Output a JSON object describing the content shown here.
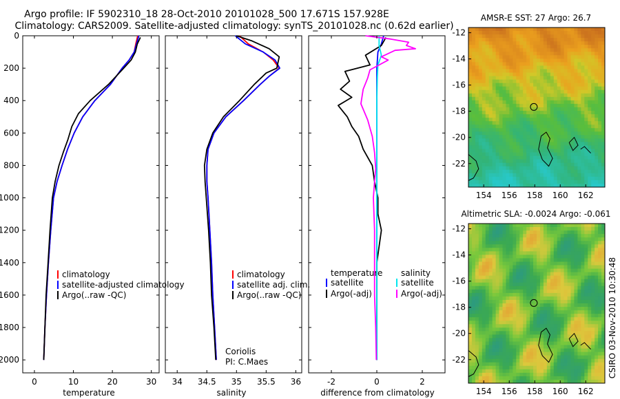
{
  "header": {
    "line1": "Argo profile: IF 5902310_18 28-Oct-2010 20101028_500 17.671S 157.928E",
    "line2": "Climatology: CARS2009. Satellite-adjusted climatology: synTS_20101028.nc (0.62d earlier)"
  },
  "colors": {
    "climatology": "#ff0000",
    "satellite": "#0000ff",
    "argo": "#000000",
    "argo_adj": "#ff00ff",
    "sat_salinity": "#00e5ee"
  },
  "chart_data": [
    {
      "type": "line",
      "xlabel": "temperature",
      "xlim": [
        -3,
        32
      ],
      "ylim": [
        0,
        2080
      ],
      "xticks": [
        0,
        10,
        20,
        30
      ],
      "yticks": [
        0,
        200,
        400,
        600,
        800,
        1000,
        1200,
        1400,
        1600,
        1800,
        2000
      ],
      "y_inverted": true,
      "legend": [
        "climatology",
        "satellite-adjusted climatology",
        "Argo(..raw -QC)"
      ],
      "series": [
        {
          "name": "climatology",
          "color": "#ff0000",
          "points": [
            [
              26.5,
              0
            ],
            [
              26,
              50
            ],
            [
              25.6,
              100
            ],
            [
              24.3,
              150
            ],
            [
              22.5,
              200
            ],
            [
              19.5,
              300
            ],
            [
              15.5,
              400
            ],
            [
              12.4,
              500
            ],
            [
              10.2,
              600
            ],
            [
              8.5,
              700
            ],
            [
              7.1,
              800
            ],
            [
              5.8,
              900
            ],
            [
              4.9,
              1000
            ],
            [
              4.2,
              1200
            ],
            [
              3.6,
              1400
            ],
            [
              3.1,
              1600
            ],
            [
              2.7,
              1800
            ],
            [
              2.4,
              2000
            ]
          ]
        },
        {
          "name": "satellite-adjusted climatology",
          "color": "#0000ff",
          "points": [
            [
              26.8,
              0
            ],
            [
              26.2,
              50
            ],
            [
              25.6,
              100
            ],
            [
              24.3,
              150
            ],
            [
              22.5,
              200
            ],
            [
              19.5,
              300
            ],
            [
              15.5,
              400
            ],
            [
              12.4,
              500
            ],
            [
              10.2,
              600
            ],
            [
              8.5,
              700
            ],
            [
              7.1,
              800
            ],
            [
              5.8,
              900
            ],
            [
              4.9,
              1000
            ],
            [
              4.2,
              1200
            ],
            [
              3.6,
              1400
            ],
            [
              3.1,
              1600
            ],
            [
              2.7,
              1800
            ],
            [
              2.4,
              2000
            ]
          ]
        },
        {
          "name": "Argo(..raw -QC)",
          "color": "#000000",
          "points": [
            [
              27.2,
              10
            ],
            [
              26.4,
              50
            ],
            [
              25.9,
              100
            ],
            [
              24.8,
              150
            ],
            [
              22.9,
              200
            ],
            [
              19,
              300
            ],
            [
              14.3,
              400
            ],
            [
              11.3,
              480
            ],
            [
              9.6,
              560
            ],
            [
              8.6,
              640
            ],
            [
              7.4,
              720
            ],
            [
              6.3,
              800
            ],
            [
              5.3,
              900
            ],
            [
              4.6,
              1000
            ],
            [
              4,
              1200
            ],
            [
              3.5,
              1400
            ],
            [
              3,
              1600
            ],
            [
              2.7,
              1800
            ],
            [
              2.4,
              2000
            ]
          ]
        }
      ]
    },
    {
      "type": "line",
      "xlabel": "salinity",
      "xlim": [
        33.8,
        36.1
      ],
      "ylim": [
        0,
        2080
      ],
      "xticks": [
        34,
        34.5,
        35,
        35.5,
        36
      ],
      "yticks": [
        0,
        200,
        400,
        600,
        800,
        1000,
        1200,
        1400,
        1600,
        1800,
        2000
      ],
      "y_inverted": true,
      "legend": [
        "climatology",
        "satellite adj. clim.",
        "Argo(..raw -QC)"
      ],
      "annotation": [
        "Coriolis",
        "PI: C.Maes"
      ],
      "series": [
        {
          "name": "climatology",
          "color": "#ff0000",
          "points": [
            [
              35.05,
              0
            ],
            [
              35.2,
              50
            ],
            [
              35.45,
              100
            ],
            [
              35.62,
              150
            ],
            [
              35.72,
              200
            ],
            [
              35.55,
              250
            ],
            [
              35.4,
              300
            ],
            [
              35.12,
              400
            ],
            [
              34.82,
              500
            ],
            [
              34.62,
              600
            ],
            [
              34.52,
              700
            ],
            [
              34.5,
              800
            ],
            [
              34.5,
              900
            ],
            [
              34.52,
              1000
            ],
            [
              34.55,
              1200
            ],
            [
              34.58,
              1400
            ],
            [
              34.6,
              1600
            ],
            [
              34.63,
              1800
            ],
            [
              34.66,
              2000
            ]
          ]
        },
        {
          "name": "satellite adj. clim.",
          "color": "#0000ff",
          "points": [
            [
              34.98,
              0
            ],
            [
              35.15,
              50
            ],
            [
              35.45,
              100
            ],
            [
              35.65,
              150
            ],
            [
              35.73,
              200
            ],
            [
              35.55,
              250
            ],
            [
              35.4,
              300
            ],
            [
              35.12,
              400
            ],
            [
              34.82,
              500
            ],
            [
              34.62,
              600
            ],
            [
              34.52,
              700
            ],
            [
              34.5,
              800
            ],
            [
              34.5,
              900
            ],
            [
              34.52,
              1000
            ],
            [
              34.55,
              1200
            ],
            [
              34.58,
              1400
            ],
            [
              34.6,
              1600
            ],
            [
              34.63,
              1800
            ],
            [
              34.66,
              2000
            ]
          ]
        },
        {
          "name": "Argo(..raw -QC)",
          "color": "#000000",
          "points": [
            [
              35.0,
              0
            ],
            [
              35.25,
              30
            ],
            [
              35.55,
              80
            ],
            [
              35.72,
              130
            ],
            [
              35.68,
              200
            ],
            [
              35.5,
              230
            ],
            [
              35.3,
              300
            ],
            [
              35.05,
              400
            ],
            [
              34.78,
              500
            ],
            [
              34.6,
              600
            ],
            [
              34.5,
              700
            ],
            [
              34.46,
              800
            ],
            [
              34.47,
              900
            ],
            [
              34.49,
              1000
            ],
            [
              34.53,
              1200
            ],
            [
              34.56,
              1400
            ],
            [
              34.58,
              1600
            ],
            [
              34.62,
              1800
            ],
            [
              34.65,
              2000
            ]
          ]
        }
      ]
    },
    {
      "type": "line",
      "xlabel": "difference from climatology",
      "xlim": [
        -3,
        3
      ],
      "ylim": [
        0,
        2080
      ],
      "xticks": [
        -2,
        0,
        2
      ],
      "yticks": [
        0,
        200,
        400,
        600,
        800,
        1000,
        1200,
        1400,
        1600,
        1800,
        2000
      ],
      "y_inverted": true,
      "legend_left_title": "temperature",
      "legend_left": [
        "satellite",
        "Argo(-adj)"
      ],
      "legend_right_title": "salinity",
      "legend_right": [
        "satellite",
        "Argo(-adj)"
      ],
      "series": [
        {
          "name": "temperature satellite",
          "color": "#0000ff",
          "points": [
            [
              0.3,
              0
            ],
            [
              0.2,
              50
            ],
            [
              0.05,
              100
            ],
            [
              0,
              200
            ],
            [
              0,
              400
            ],
            [
              0,
              800
            ],
            [
              0,
              1200
            ],
            [
              0,
              1600
            ],
            [
              0,
              2000
            ]
          ]
        },
        {
          "name": "temperature Argo(-adj)",
          "color": "#000000",
          "points": [
            [
              0.4,
              10
            ],
            [
              0.2,
              60
            ],
            [
              -0.5,
              120
            ],
            [
              -0.3,
              180
            ],
            [
              -1.4,
              220
            ],
            [
              -1.2,
              280
            ],
            [
              -1.6,
              330
            ],
            [
              -1.1,
              380
            ],
            [
              -1.7,
              430
            ],
            [
              -1.3,
              500
            ],
            [
              -1.1,
              560
            ],
            [
              -0.8,
              620
            ],
            [
              -0.6,
              700
            ],
            [
              -0.2,
              800
            ],
            [
              -0.1,
              900
            ],
            [
              0.05,
              1000
            ],
            [
              0.05,
              1100
            ],
            [
              0.2,
              1200
            ],
            [
              0.1,
              1300
            ],
            [
              0,
              1400
            ],
            [
              0,
              1600
            ],
            [
              0,
              1800
            ],
            [
              0,
              2000
            ]
          ]
        },
        {
          "name": "salinity satellite",
          "color": "#00e5ee",
          "points": [
            [
              0.1,
              0
            ],
            [
              0.1,
              60
            ],
            [
              0.2,
              120
            ],
            [
              0.05,
              180
            ],
            [
              0.02,
              260
            ],
            [
              0,
              400
            ],
            [
              0,
              800
            ],
            [
              0,
              1200
            ],
            [
              0,
              1600
            ],
            [
              0,
              2000
            ]
          ]
        },
        {
          "name": "salinity Argo(-adj)",
          "color": "#ff00ff",
          "points": [
            [
              -0.5,
              0
            ],
            [
              0.6,
              20
            ],
            [
              1.4,
              40
            ],
            [
              1.3,
              60
            ],
            [
              1.7,
              80
            ],
            [
              0.8,
              90
            ],
            [
              0.2,
              130
            ],
            [
              0.5,
              150
            ],
            [
              -0.3,
              210
            ],
            [
              -0.4,
              260
            ],
            [
              -0.6,
              330
            ],
            [
              -0.7,
              420
            ],
            [
              -0.4,
              520
            ],
            [
              -0.2,
              620
            ],
            [
              -0.1,
              720
            ],
            [
              -0.05,
              820
            ],
            [
              -0.1,
              900
            ],
            [
              -0.15,
              1000
            ],
            [
              -0.1,
              1200
            ],
            [
              -0.1,
              1400
            ],
            [
              -0.1,
              1600
            ],
            [
              -0.05,
              1800
            ],
            [
              -0.02,
              2000
            ]
          ]
        }
      ]
    },
    {
      "type": "heatmap",
      "title": "AMSR-E SST: 27 Argo: 26.7",
      "xlim": [
        152.8,
        163.5
      ],
      "ylim": [
        -23.8,
        -11.6
      ],
      "xticks": [
        154,
        156,
        158,
        160,
        162
      ],
      "yticks": [
        -12,
        -14,
        -16,
        -18,
        -20,
        -22
      ],
      "argo_position": [
        157.93,
        -17.67
      ]
    },
    {
      "type": "heatmap",
      "title": "Altimetric SLA: -0.0024 Argo: -0.061",
      "xlim": [
        152.8,
        163.5
      ],
      "ylim": [
        -23.8,
        -11.6
      ],
      "xticks": [
        154,
        156,
        158,
        160,
        162
      ],
      "yticks": [
        -12,
        -14,
        -16,
        -18,
        -20,
        -22
      ],
      "argo_position": [
        157.93,
        -17.67
      ]
    }
  ],
  "footer": {
    "stamp": "CSIRO 03-Nov-2010 10:30:48"
  }
}
